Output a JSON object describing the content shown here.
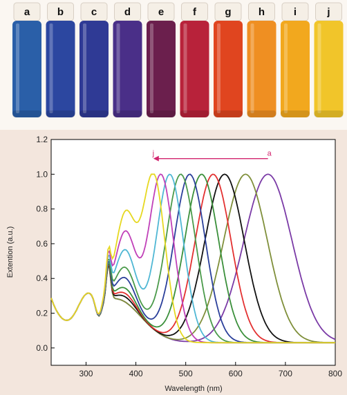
{
  "photo": {
    "vials": [
      {
        "label": "a",
        "color": "#2a5fa8"
      },
      {
        "label": "b",
        "color": "#2c47a0"
      },
      {
        "label": "c",
        "color": "#2f3a95"
      },
      {
        "label": "d",
        "color": "#4a2f88"
      },
      {
        "label": "e",
        "color": "#6b1f4d"
      },
      {
        "label": "f",
        "color": "#b8223a"
      },
      {
        "label": "g",
        "color": "#e0451f"
      },
      {
        "label": "h",
        "color": "#ef8f22"
      },
      {
        "label": "i",
        "color": "#f2a81e"
      },
      {
        "label": "j",
        "color": "#f1c52a"
      }
    ]
  },
  "chart_data": {
    "type": "line",
    "title": "",
    "xlabel": "Wavelength (nm)",
    "ylabel": "Extention (a.u.)",
    "xlim": [
      230,
      800
    ],
    "ylim": [
      -0.1,
      1.2
    ],
    "xticks": [
      300,
      400,
      500,
      600,
      700,
      800
    ],
    "yticks": [
      0.0,
      0.2,
      0.4,
      0.6,
      0.8,
      1.0,
      1.2
    ],
    "grid": false,
    "legend": "none",
    "annotation": {
      "start_label": "a",
      "end_label": "j",
      "x_from": 665,
      "x_to": 435,
      "y": 1.09,
      "color": "#d2246e"
    },
    "series": [
      {
        "label": "a",
        "color": "#7a3aa6",
        "peak": 665,
        "width": 110,
        "shoulder": 0.0
      },
      {
        "label": "b",
        "color": "#7f8f3a",
        "peak": 620,
        "width": 100,
        "shoulder": 0.0
      },
      {
        "label": "c",
        "color": "#111111",
        "peak": 578,
        "width": 90,
        "shoulder": 0.03
      },
      {
        "label": "d",
        "color": "#e33030",
        "peak": 555,
        "width": 82,
        "shoulder": 0.05
      },
      {
        "label": "e",
        "color": "#3a8f3a",
        "peak": 532,
        "width": 78,
        "shoulder": 0.08
      },
      {
        "label": "f",
        "color": "#2a3f9a",
        "peak": 508,
        "width": 72,
        "shoulder": 0.14
      },
      {
        "label": "g",
        "color": "#4a9a4a",
        "peak": 490,
        "width": 68,
        "shoulder": 0.2
      },
      {
        "label": "h",
        "color": "#4fb7d4",
        "peak": 468,
        "width": 62,
        "shoulder": 0.3
      },
      {
        "label": "i",
        "color": "#c040b8",
        "peak": 450,
        "width": 58,
        "shoulder": 0.4
      },
      {
        "label": "j",
        "color": "#e6d820",
        "peak": 435,
        "width": 52,
        "shoulder": 0.5
      }
    ]
  }
}
